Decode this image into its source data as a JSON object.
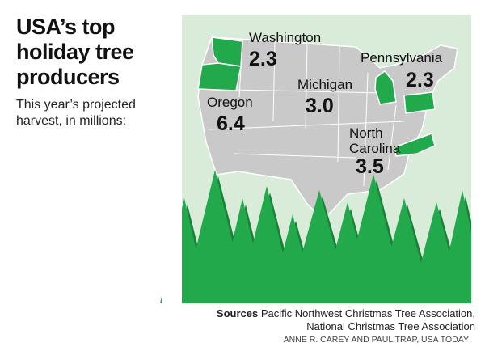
{
  "header": {
    "title": "USA’s top holiday tree producers",
    "subtitle": "This year’s projected harvest, in millions:"
  },
  "states": [
    {
      "name": "Washington",
      "value": "2.3"
    },
    {
      "name": "Pennsylvania",
      "value": "2.3"
    },
    {
      "name": "Michigan",
      "value": "3.0"
    },
    {
      "name": "Oregon",
      "value": "6.4"
    },
    {
      "name": "North Carolina",
      "value": "3.5"
    }
  ],
  "footer": {
    "sources_label": "Sources",
    "sources": "Pacific Northwest Christmas Tree Association, National Christmas Tree Association",
    "credit": "ANNE R. CAREY AND PAUL TRAP, USA TODAY"
  }
}
